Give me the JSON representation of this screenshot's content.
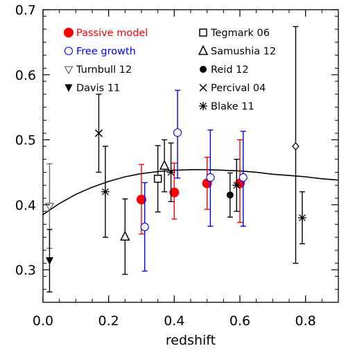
{
  "chart_data": {
    "type": "scatter",
    "xlabel": "redshift",
    "ylabel": "",
    "xlim": [
      0.0,
      0.9
    ],
    "ylim": [
      0.25,
      0.7
    ],
    "x_ticks": [
      {
        "value": 0.0,
        "label": "0.0"
      },
      {
        "value": 0.2,
        "label": "0.2"
      },
      {
        "value": 0.4,
        "label": "0.4"
      },
      {
        "value": 0.6,
        "label": "0.6"
      },
      {
        "value": 0.8,
        "label": "0.8"
      }
    ],
    "y_ticks": [
      {
        "value": 0.3,
        "label": "0.3"
      },
      {
        "value": 0.4,
        "label": "0.4"
      },
      {
        "value": 0.5,
        "label": "0.5"
      },
      {
        "value": 0.6,
        "label": "0.6"
      },
      {
        "value": 0.7,
        "label": "0.7"
      }
    ],
    "series": [
      {
        "name": "Passive model",
        "marker": "filled-circle-large",
        "color": "#ff0000",
        "points": [
          {
            "x": 0.3,
            "y": 0.408,
            "lo": 0.355,
            "hi": 0.462
          },
          {
            "x": 0.4,
            "y": 0.419,
            "lo": 0.378,
            "hi": 0.464
          },
          {
            "x": 0.5,
            "y": 0.433,
            "lo": 0.393,
            "hi": 0.473
          },
          {
            "x": 0.6,
            "y": 0.433,
            "lo": 0.373,
            "hi": 0.5
          }
        ]
      },
      {
        "name": "Free growth",
        "marker": "open-circle",
        "color": "#0000ff",
        "points": [
          {
            "x": 0.31,
            "y": 0.366,
            "lo": 0.298,
            "hi": 0.434
          },
          {
            "x": 0.41,
            "y": 0.511,
            "lo": 0.441,
            "hi": 0.576
          },
          {
            "x": 0.51,
            "y": 0.442,
            "lo": 0.367,
            "hi": 0.515
          },
          {
            "x": 0.61,
            "y": 0.442,
            "lo": 0.367,
            "hi": 0.513
          }
        ]
      },
      {
        "name": "Turnbull 12",
        "marker": "open-triangle-down",
        "color": "#000000",
        "points": [
          {
            "x": 0.02,
            "y": 0.398,
            "lo": 0.333,
            "hi": 0.463
          }
        ]
      },
      {
        "name": "Davis 11",
        "marker": "filled-triangle-down",
        "color": "#000000",
        "points": [
          {
            "x": 0.02,
            "y": 0.314,
            "lo": 0.266,
            "hi": 0.362
          }
        ]
      },
      {
        "name": "Tegmark 06",
        "marker": "open-square",
        "color": "#000000",
        "points": [
          {
            "x": 0.35,
            "y": 0.44,
            "lo": 0.389,
            "hi": 0.491
          }
        ]
      },
      {
        "name": "Samushia 12",
        "marker": "open-triangle-up",
        "color": "#000000",
        "points": [
          {
            "x": 0.25,
            "y": 0.351,
            "lo": 0.293,
            "hi": 0.409
          },
          {
            "x": 0.37,
            "y": 0.46,
            "lo": 0.42,
            "hi": 0.5
          }
        ]
      },
      {
        "name": "Reid 12",
        "marker": "filled-circle-small",
        "color": "#000000",
        "points": [
          {
            "x": 0.57,
            "y": 0.415,
            "lo": 0.381,
            "hi": 0.449
          }
        ]
      },
      {
        "name": "Percival 04",
        "marker": "x-cross",
        "color": "#000000",
        "points": [
          {
            "x": 0.17,
            "y": 0.51,
            "lo": 0.45,
            "hi": 0.57
          }
        ]
      },
      {
        "name": "Blake 11",
        "marker": "asterisk",
        "color": "#000000",
        "points": [
          {
            "x": 0.19,
            "y": 0.42,
            "lo": 0.35,
            "hi": 0.49
          },
          {
            "x": 0.39,
            "y": 0.45,
            "lo": 0.405,
            "hi": 0.495
          },
          {
            "x": 0.59,
            "y": 0.43,
            "lo": 0.39,
            "hi": 0.47
          },
          {
            "x": 0.79,
            "y": 0.38,
            "lo": 0.34,
            "hi": 0.42
          }
        ]
      },
      {
        "name": "",
        "marker": "open-diamond",
        "color": "#000000",
        "points": [
          {
            "x": 0.77,
            "y": 0.49,
            "lo": 0.31,
            "hi": 0.674
          }
        ]
      }
    ],
    "curve": {
      "color": "#000000",
      "points": [
        [
          0.0,
          0.385
        ],
        [
          0.05,
          0.402
        ],
        [
          0.1,
          0.416
        ],
        [
          0.15,
          0.427
        ],
        [
          0.2,
          0.436
        ],
        [
          0.25,
          0.443
        ],
        [
          0.3,
          0.448
        ],
        [
          0.35,
          0.451
        ],
        [
          0.4,
          0.453
        ],
        [
          0.45,
          0.454
        ],
        [
          0.5,
          0.454
        ],
        [
          0.55,
          0.453
        ],
        [
          0.6,
          0.452
        ],
        [
          0.65,
          0.45
        ],
        [
          0.7,
          0.447
        ],
        [
          0.75,
          0.445
        ],
        [
          0.8,
          0.443
        ],
        [
          0.85,
          0.44
        ],
        [
          0.9,
          0.438
        ]
      ]
    },
    "legend": {
      "placement": "top",
      "left_column": [
        "Passive model",
        "Free growth",
        "Turnbull 12",
        "Davis 11"
      ],
      "right_column": [
        "Tegmark 06",
        "Samushia 12",
        "Reid 12",
        "Percival 04",
        "Blake 11"
      ]
    },
    "grid": false
  }
}
